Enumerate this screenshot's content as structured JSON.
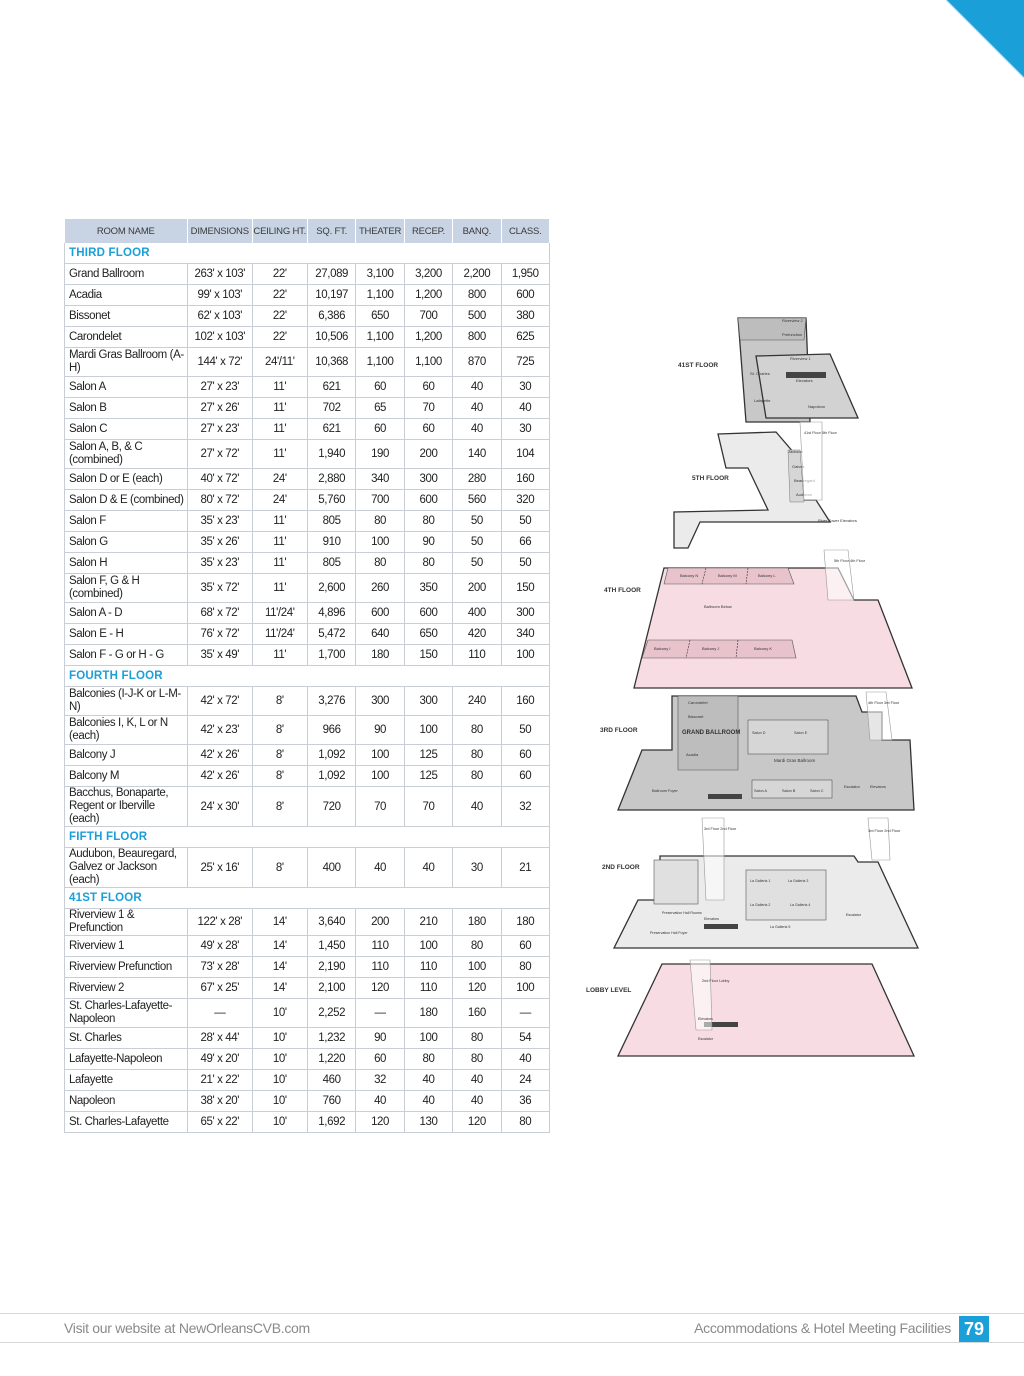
{
  "headers": [
    "ROOM NAME",
    "DIMENSIONS",
    "CEILING HT.",
    "SQ. FT.",
    "THEATER",
    "RECEP.",
    "BANQ.",
    "CLASS."
  ],
  "rows": [
    {
      "section": "THIRD FLOOR"
    },
    {
      "cells": [
        "Grand Ballroom",
        "263' x 103'",
        "22'",
        "27,089",
        "3,100",
        "3,200",
        "2,200",
        "1,950"
      ]
    },
    {
      "cells": [
        "Acadia",
        "99' x 103'",
        "22'",
        "10,197",
        "1,100",
        "1,200",
        "800",
        "600"
      ]
    },
    {
      "cells": [
        "Bissonet",
        "62' x 103'",
        "22'",
        "6,386",
        "650",
        "700",
        "500",
        "380"
      ]
    },
    {
      "cells": [
        "Carondelet",
        "102' x 103'",
        "22'",
        "10,506",
        "1,100",
        "1,200",
        "800",
        "625"
      ]
    },
    {
      "cells": [
        "Mardi Gras Ballroom (A-H)",
        "144' x 72'",
        "24'/11'",
        "10,368",
        "1,100",
        "1,100",
        "870",
        "725"
      ],
      "two": true
    },
    {
      "cells": [
        "Salon A",
        "27' x 23'",
        "11'",
        "621",
        "60",
        "60",
        "40",
        "30"
      ]
    },
    {
      "cells": [
        "Salon B",
        "27' x 26'",
        "11'",
        "702",
        "65",
        "70",
        "40",
        "40"
      ]
    },
    {
      "cells": [
        "Salon C",
        "27' x 23'",
        "11'",
        "621",
        "60",
        "60",
        "40",
        "30"
      ]
    },
    {
      "cells": [
        "Salon A, B, & C (combined)",
        "27' x 72'",
        "11'",
        "1,940",
        "190",
        "200",
        "140",
        "104"
      ],
      "two": true
    },
    {
      "cells": [
        "Salon D or E (each)",
        "40' x 72'",
        "24'",
        "2,880",
        "340",
        "300",
        "280",
        "160"
      ]
    },
    {
      "cells": [
        "Salon D & E (combined)",
        "80' x 72'",
        "24'",
        "5,760",
        "700",
        "600",
        "560",
        "320"
      ]
    },
    {
      "cells": [
        "Salon F",
        "35' x 23'",
        "11'",
        "805",
        "80",
        "80",
        "50",
        "50"
      ]
    },
    {
      "cells": [
        "Salon G",
        "35' x 26'",
        "11'",
        "910",
        "100",
        "90",
        "50",
        "66"
      ]
    },
    {
      "cells": [
        "Salon H",
        "35' x 23'",
        "11'",
        "805",
        "80",
        "80",
        "50",
        "50"
      ]
    },
    {
      "cells": [
        "Salon F, G & H (combined)",
        "35' x 72'",
        "11'",
        "2,600",
        "260",
        "350",
        "200",
        "150"
      ],
      "two": true
    },
    {
      "cells": [
        "Salon A - D",
        "68' x 72'",
        "11'/24'",
        "4,896",
        "600",
        "600",
        "400",
        "300"
      ]
    },
    {
      "cells": [
        "Salon E - H",
        "76' x 72'",
        "11'/24'",
        "5,472",
        "640",
        "650",
        "420",
        "340"
      ]
    },
    {
      "cells": [
        "Salon F - G or H - G",
        "35' x 49'",
        "11'",
        "1,700",
        "180",
        "150",
        "110",
        "100"
      ]
    },
    {
      "section": "FOURTH FLOOR"
    },
    {
      "cells": [
        "Balconies (I-J-K or L-M-N)",
        "42' x 72'",
        "8'",
        "3,276",
        "300",
        "300",
        "240",
        "160"
      ],
      "two": true
    },
    {
      "cells": [
        "Balconies I, K, L or N (each)",
        "42' x 23'",
        "8'",
        "966",
        "90",
        "100",
        "80",
        "50"
      ],
      "two": true
    },
    {
      "cells": [
        "Balcony J",
        "42' x 26'",
        "8'",
        "1,092",
        "100",
        "125",
        "80",
        "60"
      ]
    },
    {
      "cells": [
        "Balcony M",
        "42' x 26'",
        "8'",
        "1,092",
        "100",
        "125",
        "80",
        "60"
      ]
    },
    {
      "cells": [
        "Bacchus, Bonaparte, Regent or Iberville (each)",
        "24' x 30'",
        "8'",
        "720",
        "70",
        "70",
        "40",
        "32"
      ],
      "two": true
    },
    {
      "section": "FIFTH FLOOR"
    },
    {
      "cells": [
        "Audubon, Beauregard, Galvez or Jackson (each)",
        "25' x 16'",
        "8'",
        "400",
        "40",
        "40",
        "30",
        "21"
      ],
      "two": true
    },
    {
      "section": "41ST FLOOR"
    },
    {
      "cells": [
        "Riverview 1 & Prefunction",
        "122' x 28'",
        "14'",
        "3,640",
        "200",
        "210",
        "180",
        "180"
      ]
    },
    {
      "cells": [
        "Riverview 1",
        "49' x 28'",
        "14'",
        "1,450",
        "110",
        "100",
        "80",
        "60"
      ]
    },
    {
      "cells": [
        "Riverview Prefunction",
        "73' x 28'",
        "14'",
        "2,190",
        "110",
        "110",
        "100",
        "80"
      ]
    },
    {
      "cells": [
        "Riverview 2",
        "67' x 25'",
        "14'",
        "2,100",
        "120",
        "110",
        "120",
        "100"
      ]
    },
    {
      "cells": [
        "St. Charles-Lafayette-Napoleon",
        "—",
        "10'",
        "2,252",
        "—",
        "180",
        "160",
        "—"
      ],
      "two": true
    },
    {
      "cells": [
        "St. Charles",
        "28' x 44'",
        "10'",
        "1,232",
        "90",
        "100",
        "80",
        "54"
      ]
    },
    {
      "cells": [
        "Lafayette-Napoleon",
        "49' x 20'",
        "10'",
        "1,220",
        "60",
        "80",
        "80",
        "40"
      ]
    },
    {
      "cells": [
        "Lafayette",
        "21' x 22'",
        "10'",
        "460",
        "32",
        "40",
        "40",
        "24"
      ]
    },
    {
      "cells": [
        "Napoleon",
        "38' x 20'",
        "10'",
        "760",
        "40",
        "40",
        "40",
        "36"
      ]
    },
    {
      "cells": [
        "St. Charles-Lafayette",
        "65' x 22'",
        "10'",
        "1,692",
        "120",
        "130",
        "120",
        "80"
      ]
    }
  ],
  "floorplan": {
    "floor_labels": [
      "41ST FLOOR",
      "5TH FLOOR",
      "4TH FLOOR",
      "3RD FLOOR",
      "2ND FLOOR",
      "LOBBY LEVEL"
    ],
    "room_labels": {
      "f41": [
        "Riverview 2",
        "Prefunction",
        "Riverview 1",
        "St. Charles",
        "Lafayette",
        "Napoleon",
        "Elevators"
      ],
      "f5": [
        "Jackson",
        "Galvez",
        "Beauregard",
        "Audubon",
        "River Tower Elevators"
      ],
      "f4": [
        "Balcony N",
        "Balcony M",
        "Balcony L",
        "Balcony I",
        "Balcony J",
        "Balcony K",
        "Ballroom Below"
      ],
      "f3": [
        "GRAND BALLROOM",
        "Carondelet",
        "Bissonet",
        "Acadia",
        "Mardi Gras Ballroom",
        "Salon A",
        "Salon B",
        "Salon C",
        "Salon D",
        "Salon E",
        "Ballroom Foyer",
        "Escalator",
        "Elevators"
      ],
      "f2": [
        "La Galleria 1",
        "La Galleria 2",
        "La Galleria 3",
        "La Galleria 4",
        "La Galleria 5",
        "Preservation Hall Foyer",
        "Preservation Hall Rooms",
        "Elevators",
        "Escalator"
      ],
      "lobby": [
        "2nd Floor Lobby",
        "Elevators",
        "Escalator"
      ]
    },
    "arrow_labels": [
      "41st Floor 5th Floor",
      "5th Floor 4th Floor",
      "4th Floor 3rd Floor",
      "3rd Floor 2nd Floor",
      "3rd Floor 2nd Floor",
      "2nd Floor Lobby"
    ]
  },
  "footer": {
    "left": "Visit our website at NewOrleansCVB.com",
    "right": "Accommodations & Hotel Meeting Facilities",
    "page": "79"
  },
  "colors": {
    "accent": "#1b9fd8",
    "header_bg": "#c8d4e4",
    "pink": "#f7dde3",
    "gray": "#c8c8c8",
    "light": "#ebebeb"
  }
}
